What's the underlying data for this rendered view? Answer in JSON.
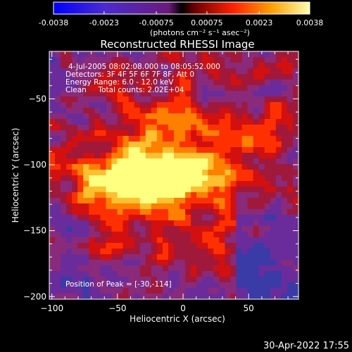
{
  "colorbar": {
    "tick_labels": [
      "-0.0038",
      "-0.0023",
      "-0.00075",
      "0.00075",
      "0.0023",
      "0.0038"
    ],
    "ticks": [
      -0.0038,
      -0.0023,
      -0.00075,
      0.00075,
      0.0023,
      0.0038
    ],
    "range": [
      -0.0038,
      0.0038
    ],
    "units": "(photons cm⁻² s⁻¹ asec⁻²)"
  },
  "chart_data": {
    "type": "heatmap",
    "title": "Reconstructed RHESSI Image",
    "xlabel": "Heliocentric X (arcsec)",
    "ylabel": "Heliocentric Y (arcsec)",
    "xlim": [
      -102,
      88
    ],
    "ylim": [
      -202,
      -14
    ],
    "x_ticks": [
      -100,
      -50,
      0,
      50
    ],
    "x_tick_labels": [
      "−100",
      "−50",
      "0",
      "50"
    ],
    "y_ticks": [
      -200,
      -150,
      -100,
      -50
    ],
    "y_tick_labels": [
      "−200",
      "−150",
      "−100",
      "−50"
    ],
    "annotations": [
      "4-Jul-2005 08:02:08.000 to 08:05:52.000",
      "Detectors: 3F 4F 5F 6F 7F 8F, Att 0",
      "Energy Range: 6.0 - 12.0 keV",
      "Clean     Total counts: 2.02E+04"
    ],
    "peak_label": "Position of Peak = [-30,-114]",
    "peak": [
      -30,
      -114
    ],
    "colors": {
      "low": "#0000ff",
      "mid_low": "#a04bd0",
      "mid": "#6b2a8a",
      "high": "#ff0000",
      "top": "#ffff00"
    }
  },
  "footer": {
    "date": "30-Apr-2022 17:55"
  }
}
